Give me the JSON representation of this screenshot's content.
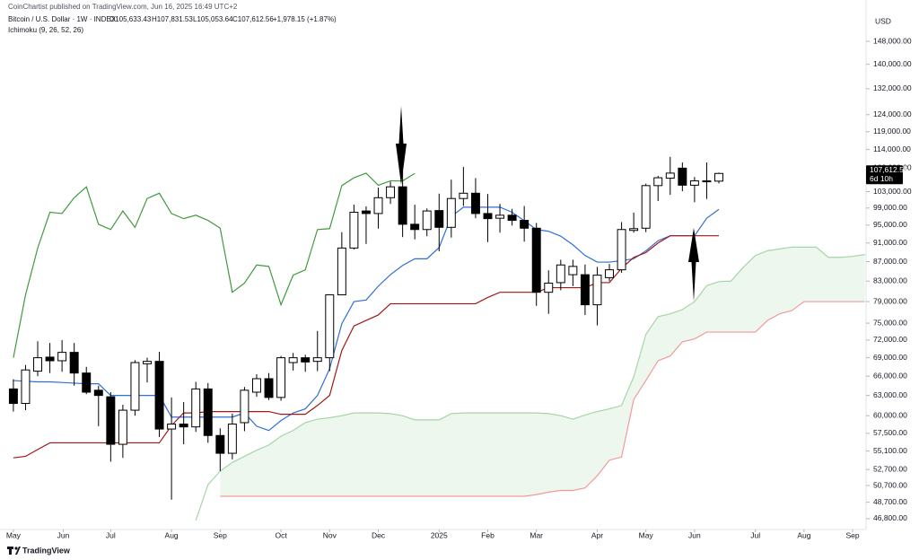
{
  "chart_data": {
    "type": "candlestick",
    "publisher_note": "CoinChartist published on TradingView.com, Jun 16, 2025 16:49 UTC+2",
    "title": "Bitcoin / U.S. Dollar · 1W · INDEX",
    "ohlc_text": [
      "O105,633.43",
      "H107,831.53",
      "L105,053.64",
      "C107,612.56",
      "+1,978.15 (+1.87%)"
    ],
    "indicator": "Ichimoku (9, 26, 52, 26)",
    "currency": "USD",
    "last_price_label": "107,612.56",
    "countdown": "6d 10h",
    "brand": "TradingView",
    "log": true,
    "grid": false,
    "x": [
      0,
      1,
      2,
      3,
      4,
      5,
      6,
      7,
      8,
      9,
      10,
      11,
      12,
      13,
      14,
      15,
      16,
      17,
      18,
      19,
      20,
      21,
      22,
      23,
      24,
      25,
      26,
      27,
      28,
      29,
      30,
      31,
      32,
      33,
      34,
      35,
      36,
      37,
      38,
      39,
      40,
      41,
      42,
      43,
      44,
      45,
      46,
      47,
      48,
      49,
      50,
      51,
      52,
      53,
      54,
      55,
      56,
      57,
      58,
      59,
      60,
      61,
      62,
      63,
      64,
      65,
      66,
      67,
      68,
      69,
      70
    ],
    "xlim": [
      -1.1,
      70.1
    ],
    "xticks": [
      {
        "value": 0,
        "label": "May"
      },
      {
        "value": 4.1,
        "label": "Jun"
      },
      {
        "value": 8.0,
        "label": "Jul"
      },
      {
        "value": 13.0,
        "label": "Aug"
      },
      {
        "value": 17.0,
        "label": "Sep"
      },
      {
        "value": 22.0,
        "label": "Oct"
      },
      {
        "value": 26.0,
        "label": "Nov"
      },
      {
        "value": 30.0,
        "label": "Dec"
      },
      {
        "value": 35.0,
        "label": "2025"
      },
      {
        "value": 39.0,
        "label": "Feb"
      },
      {
        "value": 43.0,
        "label": "Mar"
      },
      {
        "value": 48.0,
        "label": "Apr"
      },
      {
        "value": 52.0,
        "label": "May"
      },
      {
        "value": 56.0,
        "label": "Jun"
      },
      {
        "value": 61.0,
        "label": "Jul"
      },
      {
        "value": 65.0,
        "label": "Aug"
      },
      {
        "value": 69.0,
        "label": "Sep"
      }
    ],
    "ylim": [
      45600,
      163500
    ],
    "yticks": [
      {
        "value": 148000,
        "label": "148,000.00"
      },
      {
        "value": 140000,
        "label": "140,000.00"
      },
      {
        "value": 132000,
        "label": "132,000.00"
      },
      {
        "value": 124000,
        "label": "124,000.00"
      },
      {
        "value": 119000,
        "label": "119,000.00"
      },
      {
        "value": 114000,
        "label": "114,000.00"
      },
      {
        "value": 109000,
        "label": "109,000.00"
      },
      {
        "value": 103000,
        "label": "103,000.00"
      },
      {
        "value": 99000,
        "label": "99,000.00"
      },
      {
        "value": 95000,
        "label": "95,000.00"
      },
      {
        "value": 91000,
        "label": "91,000.00"
      },
      {
        "value": 87000,
        "label": "87,000.00"
      },
      {
        "value": 83000,
        "label": "83,000.00"
      },
      {
        "value": 79000,
        "label": "79,000.00"
      },
      {
        "value": 75000,
        "label": "75,000.00"
      },
      {
        "value": 72000,
        "label": "72,000.00"
      },
      {
        "value": 69000,
        "label": "69,000.00"
      },
      {
        "value": 66000,
        "label": "66,000.00"
      },
      {
        "value": 63000,
        "label": "63,000.00"
      },
      {
        "value": 60000,
        "label": "60,000.00"
      },
      {
        "value": 57500,
        "label": "57,500.00"
      },
      {
        "value": 55100,
        "label": "55,100.00"
      },
      {
        "value": 52700,
        "label": "52,700.00"
      },
      {
        "value": 50700,
        "label": "50,700.00"
      },
      {
        "value": 48700,
        "label": "48,700.00"
      },
      {
        "value": 46800,
        "label": "46,800.00"
      }
    ],
    "candles": {
      "up_color": "#ffffff",
      "down_color": "#000000",
      "border_color": "#000000",
      "open": [
        64000,
        61800,
        66800,
        69100,
        68500,
        69900,
        66500,
        63800,
        62800,
        56000,
        60800,
        68000,
        68400,
        58100,
        58800,
        58400,
        64000,
        57200,
        54800,
        59000,
        63500,
        65600,
        62700,
        68200,
        69000,
        68400,
        69000,
        80300,
        89900,
        98300,
        97700,
        101500,
        104200,
        95200,
        94000,
        98400,
        94500,
        101300,
        102600,
        97700,
        96600,
        97300,
        96100,
        94300,
        80800,
        82700,
        84300,
        84300,
        78400,
        83700,
        85300,
        93800,
        94300,
        104500,
        106400,
        109000,
        104600,
        105600,
        105633.43,
        null,
        null,
        null,
        null,
        null,
        null,
        null,
        null,
        null,
        null,
        null,
        null
      ],
      "high": [
        65500,
        67800,
        71800,
        71500,
        72000,
        71500,
        67500,
        64500,
        63500,
        61600,
        68600,
        69000,
        70000,
        62700,
        62000,
        65100,
        64900,
        58200,
        60300,
        64300,
        66300,
        66500,
        69300,
        69800,
        69500,
        73600,
        80400,
        93400,
        99800,
        99400,
        104000,
        105500,
        108300,
        99800,
        98900,
        102500,
        106000,
        109300,
        106400,
        102400,
        100000,
        98800,
        99500,
        95500,
        85200,
        87400,
        87400,
        86400,
        85900,
        86500,
        95700,
        97900,
        105000,
        107000,
        112000,
        110500,
        106700,
        110500,
        107831.53,
        null,
        null,
        null,
        null,
        null,
        null,
        null,
        null,
        null,
        null,
        null,
        null
      ],
      "low": [
        60600,
        60800,
        66000,
        66500,
        66700,
        64500,
        63200,
        58500,
        53700,
        54200,
        60000,
        65000,
        57000,
        49000,
        56000,
        57700,
        56200,
        52500,
        54000,
        57800,
        62800,
        62300,
        62200,
        66900,
        66700,
        66800,
        66800,
        80200,
        89600,
        90800,
        94200,
        100000,
        92300,
        91800,
        92500,
        89200,
        92200,
        99500,
        96600,
        91200,
        93300,
        94900,
        91300,
        78200,
        76700,
        81200,
        82000,
        76500,
        74600,
        83000,
        84700,
        93300,
        93400,
        100700,
        102200,
        103100,
        100400,
        101200,
        105053.64,
        null,
        null,
        null,
        null,
        null,
        null,
        null,
        null,
        null,
        null,
        null,
        null
      ],
      "close": [
        61800,
        67000,
        69000,
        68500,
        69900,
        66500,
        63500,
        63000,
        56000,
        60800,
        68200,
        68400,
        58100,
        58800,
        58400,
        64000,
        57200,
        54800,
        58800,
        63800,
        65600,
        62700,
        69000,
        69000,
        68300,
        69000,
        80300,
        89900,
        98000,
        97700,
        101500,
        104200,
        95200,
        94000,
        98300,
        94500,
        101300,
        102600,
        97700,
        96500,
        97300,
        96100,
        94300,
        80800,
        82600,
        86300,
        86000,
        78400,
        84200,
        85300,
        94000,
        94200,
        104500,
        106500,
        107700,
        104600,
        105700,
        105700,
        107612.56,
        null,
        null,
        null,
        null,
        null,
        null,
        null,
        null,
        null,
        null,
        null,
        null
      ]
    },
    "series": [
      {
        "color": "#2f6fd6",
        "values": [
          65300,
          65200,
          65100,
          65100,
          65000,
          64900,
          64800,
          64800,
          63000,
          63000,
          63000,
          63000,
          63000,
          59800,
          59800,
          59800,
          59800,
          59800,
          59800,
          60400,
          58500,
          57900,
          59300,
          60400,
          61000,
          63000,
          67200,
          74900,
          79000,
          79300,
          82000,
          84300,
          86200,
          87600,
          87600,
          90000,
          97000,
          99200,
          99200,
          99200,
          99200,
          98000,
          96000,
          94000,
          93600,
          92500,
          90600,
          88300,
          86900,
          86900,
          87200,
          87600,
          89300,
          91500,
          92600,
          92600,
          92600,
          96600,
          98700,
          null,
          null,
          null,
          null,
          null,
          null,
          null,
          null,
          null,
          null,
          null,
          null
        ]
      },
      {
        "color": "#a01818",
        "values": [
          54200,
          54400,
          55300,
          56200,
          56200,
          56200,
          56200,
          56200,
          56200,
          56200,
          56200,
          56200,
          56200,
          58600,
          60400,
          60400,
          60600,
          60600,
          60600,
          60600,
          60600,
          60600,
          60200,
          60200,
          60200,
          61500,
          63000,
          70200,
          74500,
          75500,
          76500,
          78600,
          78600,
          78600,
          78600,
          78600,
          78600,
          78600,
          78600,
          79800,
          80800,
          80800,
          80800,
          80800,
          81700,
          81700,
          81700,
          81700,
          82700,
          82700,
          85600,
          87900,
          88900,
          91000,
          92600,
          92600,
          92600,
          92600,
          92600,
          null,
          null,
          null,
          null,
          null,
          null,
          null,
          null,
          null,
          null,
          null,
          null
        ]
      },
      {
        "color": "#3f9a3f",
        "values": [
          69000,
          80300,
          89900,
          98000,
          97700,
          101500,
          104200,
          95200,
          94000,
          98300,
          94500,
          101300,
          102600,
          97700,
          96500,
          97300,
          96100,
          94300,
          80800,
          82600,
          86300,
          86000,
          78400,
          84200,
          85300,
          94000,
          94200,
          104500,
          106500,
          107700,
          104600,
          105700,
          105700,
          107612.56,
          null,
          null,
          null,
          null,
          null,
          null,
          null,
          null,
          null,
          null,
          null,
          null,
          null,
          null,
          null,
          null,
          null,
          null,
          null,
          null,
          null,
          null,
          null,
          null,
          null,
          null,
          null,
          null,
          null,
          null,
          null,
          null,
          null,
          null,
          null,
          null,
          null
        ]
      }
    ],
    "cloud": {
      "fill": "rgba(76,175,80,0.10)",
      "span_a": {
        "color": "#a5d6a7",
        "values": [
          null,
          null,
          null,
          null,
          null,
          null,
          null,
          null,
          null,
          null,
          null,
          null,
          null,
          null,
          null,
          46600,
          50800,
          52500,
          53600,
          54400,
          55200,
          55900,
          57100,
          57900,
          59000,
          59500,
          59700,
          60000,
          60400,
          60400,
          60400,
          60300,
          60000,
          59400,
          59400,
          59400,
          60300,
          60400,
          60400,
          60400,
          60400,
          60400,
          60400,
          60400,
          60300,
          60000,
          59500,
          60100,
          60600,
          61000,
          61500,
          65900,
          73000,
          76200,
          76700,
          77500,
          79000,
          82100,
          82900,
          83000,
          85800,
          88300,
          89300,
          89700,
          90100,
          90100,
          90100,
          87900,
          87900,
          88100,
          88500
        ]
      },
      "span_b": {
        "color": "#f19a9a",
        "values": [
          null,
          null,
          null,
          null,
          null,
          null,
          null,
          null,
          null,
          null,
          null,
          null,
          null,
          null,
          null,
          null,
          null,
          49400,
          49400,
          49400,
          49400,
          49400,
          49400,
          49400,
          49400,
          49400,
          49400,
          49400,
          49400,
          49400,
          49400,
          49400,
          49400,
          49400,
          49400,
          49400,
          49400,
          49400,
          49400,
          49400,
          49400,
          49400,
          49400,
          49600,
          49900,
          50100,
          50100,
          50400,
          51900,
          53900,
          54300,
          62400,
          65300,
          68500,
          69300,
          71700,
          72200,
          73400,
          73400,
          73400,
          73400,
          73400,
          75500,
          76700,
          77300,
          79000,
          79000,
          79000,
          79000,
          79000,
          79000
        ]
      }
    }
  }
}
